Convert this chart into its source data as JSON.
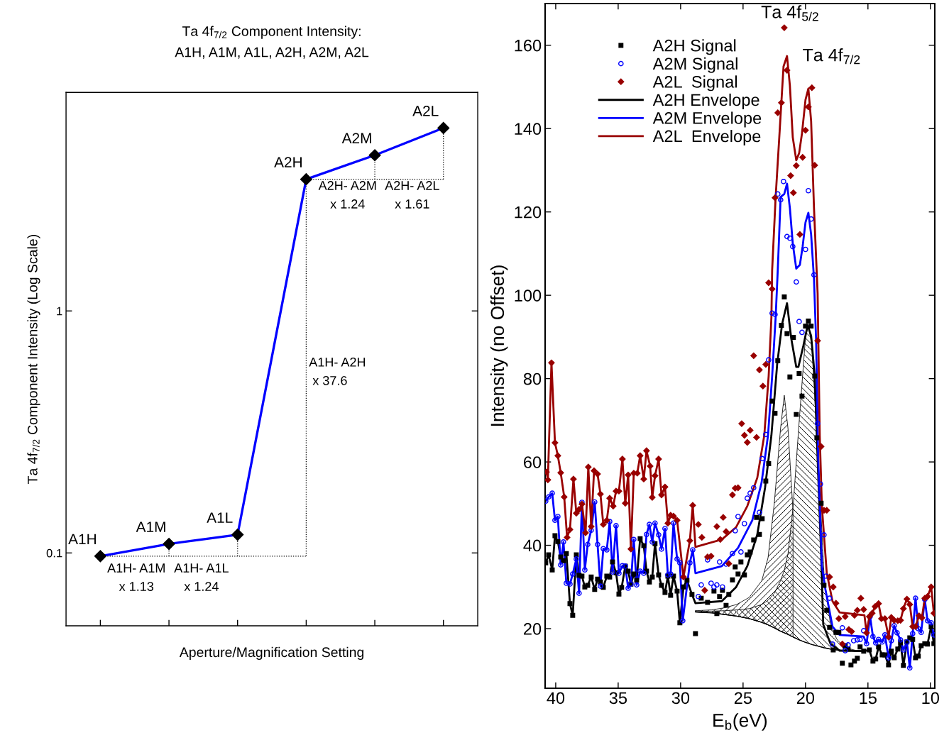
{
  "chart_data": [
    {
      "type": "line",
      "title": "Ta 4f$_{7/2}$ Component Intensity:\nA1H, A1M, A1L, A2H, A2M, A2L",
      "xlabel": "Aperture/Magnification Setting",
      "ylabel": "Ta 4f$_{7/2}$ Component Intensity (Log Scale)",
      "categories": [
        "A1H",
        "A1M",
        "A1L",
        "A2H",
        "A2M",
        "A2L"
      ],
      "values": [
        0.097,
        0.109,
        0.119,
        3.5,
        4.4,
        5.7
      ],
      "color": "#0000ff",
      "marker": "diamond",
      "log": true,
      "ylim": [
        0.05,
        8
      ],
      "yticks": [
        0.1,
        1
      ],
      "tick_labels": "y",
      "annotations": [
        "A1H- A1M\nx 1.13",
        "A1H- A1L\nx 1.24",
        "A1H- A2H\n x 37.6",
        "A2H- A2M\nx 1.24",
        "A2H- A2L\nx 1.61"
      ]
    },
    {
      "type": "scatter",
      "xlabel": "E$_{b}$(eV)",
      "ylabel": "Intensity (no Offset)",
      "xlim": [
        40.85,
        9.65
      ],
      "ylim": [
        5.7,
        170
      ],
      "xticks": [
        40,
        35,
        30,
        25,
        20,
        15,
        10
      ],
      "yticks": [
        20,
        40,
        60,
        80,
        100,
        120,
        140,
        160
      ],
      "legend": "top left",
      "annotations": [
        {
          "text": "Ta 4f$_{5/2}$",
          "x": 21.7,
          "y": 164.2
        },
        {
          "text": "Ta 4f$_{7/2}$",
          "x": 19.77,
          "y": 149.6
        }
      ],
      "series": [
        {
          "type": "line",
          "color": "#000000",
          "x": [
            28.8,
            27.5,
            26.5,
            25.5,
            24.5,
            23.5,
            23.0,
            22.5,
            22.0,
            21.7,
            21.4,
            21.0,
            20.5,
            20.0,
            19.77,
            19.5,
            19.0,
            18.5,
            18.0,
            17.5,
            17.0,
            16.5,
            16.0,
            15.3
          ],
          "values": [
            24.0,
            23.8,
            23.4,
            23.0,
            22.4,
            21.5,
            20.9,
            20.2,
            19.4,
            19.0,
            18.6,
            18.0,
            17.3,
            16.7,
            16.5,
            16.2,
            15.8,
            15.4,
            15.1,
            14.9,
            14.8,
            14.7,
            14.6,
            14.6
          ]
        },
        {
          "type": "area",
          "color": "#000000",
          "x": [
            28.8,
            27.5,
            26.5,
            25.5,
            24.5,
            23.5,
            23.0,
            22.5,
            22.0,
            21.7,
            21.4,
            21.0,
            20.5,
            20.0,
            19.77,
            19.5,
            19.0,
            18.5,
            18.0,
            17.5,
            17.0,
            16.5,
            16.0,
            15.3
          ],
          "values": [
            24.3,
            24.5,
            25.0,
            25.8,
            27.5,
            31.5,
            37,
            50,
            68,
            76,
            68,
            48,
            null,
            null,
            null,
            null,
            null,
            null,
            null,
            null,
            15.1,
            14.9,
            14.7,
            14.6
          ]
        },
        {
          "type": "area",
          "color": "#000000",
          "x": [
            28.8,
            27.5,
            26.5,
            25.5,
            24.5,
            23.5,
            23.0,
            22.5,
            22.0,
            21.7,
            21.4,
            21.0,
            20.5,
            20.0,
            19.77,
            19.5,
            19.0,
            18.5,
            18.0,
            17.5,
            17.0,
            16.5,
            16.0,
            15.3
          ],
          "values": [
            24.1,
            24.2,
            24.3,
            24.5,
            24.8,
            25.8,
            26.8,
            28.5,
            31.5,
            34,
            38,
            49,
            70,
            90,
            92.8,
            88,
            62,
            32,
            21,
            17.5,
            15.8,
            15.2,
            14.8,
            14.6
          ]
        },
        {
          "name": "A2H Signal",
          "type": "scatter",
          "marker": "square",
          "color": "#000000",
          "x": [
            40.8,
            40.57,
            40.28,
            40.06,
            39.83,
            39.6,
            39.38,
            39.15,
            38.86,
            38.64,
            38.35,
            38.13,
            37.9,
            37.67,
            37.44,
            37.16,
            36.88,
            36.65,
            36.42,
            36.19,
            35.91,
            35.68,
            35.45,
            35.17,
            34.94,
            34.72,
            34.43,
            34.2,
            33.98,
            33.75,
            33.52,
            33.24,
            32.95,
            32.73,
            32.5,
            32.27,
            32.05,
            31.76,
            31.53,
            31.25,
            31.02,
            30.8,
            30.57,
            30.28,
            30.06,
            29.77,
            29.49,
            29.09,
            28.81,
            28.35,
            27.84,
            27.33,
            27.1,
            26.88,
            26.65,
            26.36,
            26.14,
            25.85,
            25.63,
            25.4,
            25.17,
            24.89,
            24.66,
            24.43,
            24.15,
            23.92,
            23.69,
            23.47,
            23.18,
            22.95,
            22.67,
            22.44,
            22.22,
            21.93,
            21.7,
            21.48,
            21.25,
            20.97,
            20.74,
            20.51,
            20.28,
            20.0,
            19.77,
            19.55,
            19.26,
            19.09,
            18.75,
            18.52,
            18.3,
            18.07,
            17.78,
            17.56,
            17.33,
            17.05,
            16.82,
            16.59,
            16.36,
            16.08,
            15.85,
            15.63,
            15.34,
            14.89,
            14.6,
            14.38,
            14.15,
            13.86,
            13.64,
            13.35,
            13.13,
            12.9,
            12.61,
            12.39,
            12.16,
            11.88,
            11.65,
            11.42,
            11.19,
            10.97,
            10.74,
            10.45,
            10.23,
            9.94,
            9.72
          ],
          "values": [
            35.8,
            37.7,
            34.1,
            42.3,
            40.9,
            37.2,
            36.3,
            38.0,
            26.0,
            23.2,
            37.7,
            32.8,
            32.6,
            30.0,
            30.4,
            32.4,
            29.4,
            31.9,
            31.2,
            29.9,
            32.6,
            32.4,
            36.0,
            33.4,
            28.3,
            29.9,
            35.0,
            33.8,
            30.7,
            33.1,
            31.6,
            41.6,
            39.9,
            33.8,
            31.2,
            32.4,
            40.4,
            32.9,
            30.4,
            28.7,
            32.6,
            28.0,
            32.6,
            29.0,
            21.4,
            30.0,
            31.6,
            28.2,
            18.8,
            27.3,
            26.3,
            29.0,
            23.6,
            27.7,
            29.2,
            25.6,
            28.2,
            31.7,
            34.8,
            33.1,
            36.0,
            32.9,
            37.7,
            38.4,
            41.3,
            46.7,
            42.6,
            46.4,
            55.4,
            59.6,
            74.6,
            71.7,
            84.3,
            92.8,
            99.6,
            90.8,
            80.4,
            89.9,
            71.4,
            81.2,
            75.8,
            92.6,
            93.8,
            92.6,
            80.6,
            65.8,
            50.1,
            30.4,
            24.4,
            20.3,
            14.9,
            19.1,
            19.1,
            11.7,
            15.9,
            15.1,
            11.3,
            12.2,
            12.9,
            15.6,
            14.6,
            14.9,
            12.2,
            12.7,
            15.6,
            13.7,
            13.7,
            11.3,
            14.6,
            13.0,
            15.1,
            16.6,
            11.2,
            16.8,
            17.8,
            17.4,
            13.0,
            13.4,
            15.9,
            16.4,
            16.3,
            20.5,
            16.4
          ]
        },
        {
          "name": "A2M Signal",
          "type": "scatter",
          "marker": "circle",
          "color": "#0000ff",
          "x": [
            40.8,
            40.57,
            40.28,
            40.06,
            39.83,
            39.6,
            39.38,
            39.15,
            38.86,
            38.64,
            38.35,
            38.13,
            37.9,
            37.67,
            37.44,
            37.16,
            36.88,
            36.65,
            36.42,
            36.19,
            35.91,
            35.68,
            35.45,
            35.17,
            34.94,
            34.66,
            34.43,
            34.2,
            33.98,
            33.75,
            33.52,
            33.24,
            32.95,
            32.73,
            32.5,
            32.27,
            32.05,
            31.76,
            31.53,
            31.25,
            31.02,
            30.8,
            30.57,
            30.28,
            30.06,
            29.83,
            29.26,
            29.03,
            28.58,
            28.35,
            27.84,
            27.56,
            27.33,
            27.1,
            26.88,
            26.65,
            26.36,
            25.85,
            25.63,
            25.4,
            25.17,
            24.89,
            24.66,
            24.43,
            24.15,
            23.69,
            23.47,
            23.18,
            22.95,
            22.67,
            22.44,
            22.22,
            21.99,
            21.76,
            21.48,
            21.25,
            21.02,
            20.74,
            20.51,
            20.28,
            20.0,
            19.77,
            19.55,
            19.32,
            19.03,
            18.81,
            18.52,
            18.35,
            18.07,
            17.84,
            17.05,
            16.82,
            16.59,
            16.14,
            15.85,
            15.63,
            15.34,
            15.11,
            14.83,
            14.6,
            14.38,
            14.15,
            13.86,
            13.64,
            13.35,
            13.13,
            12.9,
            12.67,
            12.39,
            12.16,
            11.88,
            11.65,
            11.42,
            11.19,
            10.97,
            10.74,
            10.45,
            10.23,
            9.94,
            9.72
          ],
          "values": [
            50.6,
            51.6,
            52.5,
            46.0,
            46.9,
            35.3,
            40.8,
            30.9,
            30.7,
            33.1,
            36.7,
            28.5,
            50.3,
            34.1,
            40.2,
            43.6,
            50.4,
            40.2,
            30.2,
            39.2,
            38.9,
            45.7,
            33.6,
            44.7,
            33.3,
            35.1,
            35.0,
            29.7,
            30.7,
            41.4,
            30.5,
            33.8,
            33.3,
            42.6,
            45.0,
            40.8,
            45.3,
            42.5,
            39.1,
            44.0,
            32.9,
            33.1,
            45.3,
            36.7,
            35.8,
            21.9,
            35.8,
            38.9,
            27.7,
            30.5,
            36.5,
            30.9,
            30.0,
            30.5,
            36.0,
            30.0,
            35.5,
            38.0,
            43.5,
            46.9,
            38.4,
            45.2,
            51.3,
            52.5,
            53.8,
            47.9,
            60.8,
            66.6,
            84.5,
            95.7,
            95.4,
            124.3,
            122.9,
            127.3,
            114.1,
            113.7,
            111.7,
            103.2,
            93.7,
            91.1,
            111.0,
            125.1,
            118.3,
            104.9,
            69.2,
            54.7,
            42.5,
            32.6,
            27.3,
            16.3,
            20.2,
            14.7,
            16.1,
            17.1,
            17.3,
            17.4,
            19.5,
            16.4,
            22.9,
            18.1,
            16.6,
            17.4,
            16.8,
            18.5,
            13.0,
            17.1,
            20.7,
            19.0,
            17.3,
            14.9,
            16.8,
            10.6,
            18.8,
            27.3,
            20.0,
            19.1,
            27.0,
            21.9,
            21.4,
            18.5
          ]
        },
        {
          "name": "A2L  Signal",
          "type": "scatter",
          "marker": "diamond",
          "color": "#990000",
          "x": [
            40.74,
            40.63,
            40.34,
            40.06,
            39.83,
            39.6,
            39.32,
            39.09,
            38.86,
            38.58,
            38.35,
            38.13,
            37.9,
            37.61,
            37.39,
            37.16,
            36.93,
            36.65,
            36.42,
            36.19,
            35.91,
            35.68,
            35.4,
            35.17,
            34.94,
            34.66,
            34.43,
            34.2,
            33.98,
            33.75,
            33.47,
            33.24,
            32.95,
            32.73,
            32.44,
            32.27,
            32.05,
            31.76,
            31.53,
            31.25,
            31.02,
            30.8,
            30.57,
            30.28,
            29.77,
            29.26,
            29.03,
            28.58,
            28.3,
            28.07,
            27.84,
            27.56,
            27.1,
            26.82,
            26.59,
            26.36,
            26.14,
            25.85,
            25.63,
            25.4,
            25.11,
            24.89,
            24.66,
            24.43,
            24.15,
            23.92,
            23.69,
            23.41,
            23.18,
            22.95,
            22.67,
            22.44,
            22.22,
            21.93,
            21.7,
            21.48,
            21.19,
            20.97,
            20.74,
            20.45,
            20.23,
            20.0,
            19.77,
            19.49,
            19.26,
            19.03,
            18.75,
            18.52,
            18.3,
            18.07,
            17.78,
            17.56,
            17.33,
            17.05,
            16.82,
            16.53,
            16.31,
            16.08,
            15.85,
            15.57,
            15.34,
            15.11,
            14.89,
            14.66,
            14.43,
            14.15,
            13.92,
            13.64,
            13.35,
            13.13,
            12.9,
            12.61,
            12.39,
            12.16,
            11.88,
            11.65,
            11.42,
            11.19,
            10.91,
            10.68,
            10.45,
            10.23,
            9.94,
            9.72
          ],
          "values": [
            57.6,
            55.7,
            83.8,
            64.6,
            61.5,
            57.4,
            51.6,
            41.9,
            43.8,
            55.9,
            47.7,
            48.6,
            49.9,
            43.0,
            58.8,
            44.5,
            57.9,
            57.1,
            52.3,
            45.0,
            46.0,
            51.3,
            49.4,
            53.0,
            53.0,
            60.7,
            50.1,
            56.9,
            39.1,
            57.3,
            57.3,
            61.5,
            55.9,
            62.7,
            59.0,
            51.5,
            56.7,
            60.7,
            52.1,
            54.0,
            45.3,
            47.2,
            47.0,
            46.0,
            32.4,
            41.1,
            49.6,
            45.0,
            41.9,
            29.2,
            37.2,
            37.4,
            44.5,
            41.4,
            46.7,
            43.3,
            35.6,
            52.1,
            53.7,
            53.8,
            69.2,
            66.4,
            64.7,
            67.6,
            85.5,
            65.9,
            82.1,
            78.2,
            83.4,
            103.0,
            101.5,
            123.4,
            143.8,
            146.2,
            164.2,
            154.0,
            128.7,
            124.6,
            131.1,
            114.6,
            133.1,
            139.6,
            145.2,
            149.8,
            131.2,
            89.1,
            63.7,
            48.4,
            48.4,
            32.4,
            30.0,
            26.1,
            22.4,
            16.3,
            22.9,
            19.8,
            19.3,
            23.2,
            24.4,
            27.3,
            24.6,
            19.0,
            22.9,
            23.7,
            25.3,
            26.0,
            22.4,
            22.4,
            18.0,
            22.7,
            22.0,
            21.9,
            22.0,
            24.8,
            27.1,
            25.8,
            20.5,
            20.5,
            23.1,
            22.6,
            27.3,
            27.7,
            30.0,
            23.7
          ]
        },
        {
          "name": "A2H Envelope",
          "type": "line",
          "color": "#000000",
          "x": [
            40.8,
            40.57,
            40.28,
            40.06,
            39.83,
            39.6,
            39.38,
            39.15,
            38.86,
            38.64,
            38.35,
            38.13,
            37.9,
            37.67,
            37.44,
            37.16,
            36.88,
            36.65,
            36.42,
            36.19,
            35.91,
            35.68,
            35.45,
            35.17,
            34.94,
            34.72,
            34.43,
            34.2,
            33.98,
            33.75,
            33.52,
            33.24,
            32.95,
            32.73,
            32.5,
            32.27,
            32.05,
            31.76,
            31.53,
            31.25,
            31.02,
            30.8,
            30.57,
            30.28,
            30.06,
            29.77,
            29.49,
            29.09,
            28.81,
            26.7,
            25.57,
            24.66,
            23.86,
            23.24,
            22.73,
            22.27,
            21.88,
            21.48,
            21.14,
            20.74,
            20.57,
            20.17,
            19.83,
            19.55,
            19.26,
            19.03,
            18.75,
            18.58,
            18.0,
            17.27,
            15.28,
            14.89,
            14.6,
            14.38,
            14.15,
            13.86,
            13.64,
            13.35,
            13.13,
            12.9,
            12.61,
            12.39,
            12.16,
            11.88,
            11.65,
            11.42,
            11.19,
            10.97,
            10.74,
            10.45,
            10.23,
            9.94,
            9.72
          ],
          "values": [
            35.8,
            37.7,
            34.1,
            42.3,
            40.9,
            37.2,
            36.3,
            38.0,
            26.0,
            23.2,
            37.7,
            32.8,
            32.6,
            30.0,
            30.4,
            32.4,
            29.4,
            31.9,
            31.2,
            29.9,
            32.6,
            32.4,
            36.0,
            33.4,
            28.3,
            29.9,
            35.0,
            33.8,
            30.7,
            33.1,
            31.6,
            41.6,
            39.9,
            33.8,
            31.2,
            32.4,
            40.4,
            32.9,
            30.4,
            28.7,
            32.6,
            28.0,
            32.6,
            29.0,
            21.4,
            30.0,
            31.6,
            28.2,
            26.1,
            26.6,
            29.9,
            35.0,
            42.6,
            53.8,
            66.4,
            83.4,
            93.0,
            98.1,
            89.6,
            82.8,
            82.8,
            87.9,
            92.8,
            90.3,
            80.6,
            60.7,
            38.0,
            21.0,
            16.4,
            14.7,
            14.6,
            14.9,
            12.2,
            12.7,
            15.6,
            13.7,
            13.7,
            11.3,
            14.6,
            13.0,
            15.1,
            16.6,
            11.2,
            16.8,
            17.8,
            17.4,
            13.0,
            13.4,
            15.9,
            16.4,
            16.3,
            20.5,
            16.4
          ]
        },
        {
          "name": "A2M Envelope",
          "type": "line",
          "color": "#0000ff",
          "x": [
            40.8,
            40.57,
            40.28,
            40.06,
            39.83,
            39.6,
            39.38,
            39.15,
            38.86,
            38.64,
            38.35,
            38.13,
            37.9,
            37.67,
            37.44,
            37.16,
            36.88,
            36.65,
            36.42,
            36.19,
            35.91,
            35.68,
            35.45,
            35.17,
            34.94,
            34.66,
            34.43,
            34.2,
            33.98,
            33.75,
            33.52,
            33.24,
            32.95,
            32.73,
            32.5,
            32.27,
            32.05,
            31.76,
            31.53,
            31.25,
            31.02,
            30.8,
            30.57,
            30.28,
            30.06,
            29.83,
            29.26,
            29.03,
            28.81,
            26.7,
            25.4,
            24.26,
            23.52,
            23.0,
            22.67,
            22.39,
            22.22,
            21.99,
            21.7,
            21.48,
            21.25,
            21.02,
            20.74,
            20.45,
            20.23,
            20.0,
            19.77,
            19.55,
            19.32,
            19.15,
            18.98,
            18.69,
            18.41,
            17.84,
            17.27,
            15.34,
            15.11,
            14.83,
            14.6,
            14.38,
            14.15,
            13.86,
            13.64,
            13.35,
            13.13,
            12.9,
            12.67,
            12.39,
            12.16,
            11.88,
            11.65,
            11.42,
            11.19,
            10.97,
            10.74,
            10.45,
            10.23,
            9.94,
            9.72
          ],
          "values": [
            50.6,
            51.6,
            52.5,
            46.0,
            46.9,
            35.3,
            40.8,
            30.9,
            30.7,
            33.1,
            36.7,
            28.5,
            50.3,
            34.1,
            40.2,
            43.6,
            50.4,
            40.2,
            30.2,
            39.2,
            38.9,
            45.7,
            33.6,
            44.7,
            33.3,
            35.1,
            35.0,
            29.7,
            30.7,
            41.4,
            30.5,
            33.8,
            33.3,
            42.6,
            45.0,
            40.8,
            45.3,
            42.5,
            39.1,
            44.0,
            32.9,
            33.1,
            45.3,
            36.7,
            35.8,
            21.9,
            35.8,
            38.9,
            33.3,
            35.0,
            39.4,
            46.0,
            55.0,
            66.4,
            80.6,
            94.7,
            106.1,
            123.6,
            124.3,
            126.8,
            120.9,
            112.4,
            106.4,
            107.3,
            111.7,
            117.5,
            119.8,
            114.6,
            103.9,
            89.1,
            60.7,
            35.1,
            29.5,
            20.5,
            18.5,
            18.1,
            16.4,
            22.9,
            18.1,
            16.6,
            17.4,
            16.8,
            18.5,
            13.0,
            17.1,
            20.7,
            19.0,
            17.3,
            14.9,
            16.8,
            10.6,
            18.8,
            27.3,
            20.0,
            19.1,
            27.0,
            21.9,
            21.4,
            18.5
          ]
        },
        {
          "name": "A2L  Envelope",
          "type": "line",
          "color": "#990000",
          "x": [
            40.74,
            40.63,
            40.34,
            40.06,
            39.83,
            39.6,
            39.32,
            39.09,
            38.86,
            38.58,
            38.35,
            38.13,
            37.9,
            37.61,
            37.39,
            37.16,
            36.93,
            36.65,
            36.42,
            36.19,
            35.91,
            35.68,
            35.4,
            35.17,
            34.94,
            34.66,
            34.43,
            34.2,
            33.98,
            33.75,
            33.47,
            33.24,
            32.95,
            32.73,
            32.44,
            32.27,
            32.05,
            31.76,
            31.53,
            31.25,
            31.02,
            30.8,
            30.57,
            30.28,
            29.77,
            29.26,
            29.03,
            28.81,
            26.7,
            25.57,
            24.66,
            23.86,
            23.3,
            22.95,
            22.73,
            22.67,
            22.39,
            22.1,
            21.76,
            21.48,
            21.25,
            21.02,
            20.74,
            20.51,
            20.28,
            20.0,
            19.77,
            19.55,
            19.32,
            19.03,
            18.86,
            18.69,
            18.3,
            17.84,
            17.27,
            15.28,
            15.11,
            14.89,
            14.66,
            14.43,
            14.15,
            13.92,
            13.64,
            13.35,
            13.13,
            12.9,
            12.61,
            12.39,
            12.16,
            11.88,
            11.65,
            11.42,
            11.19,
            10.91,
            10.68,
            10.45,
            10.23,
            9.94,
            9.72
          ],
          "values": [
            57.6,
            55.7,
            83.8,
            64.6,
            61.5,
            57.4,
            51.6,
            41.9,
            43.8,
            55.9,
            47.7,
            48.6,
            49.9,
            43.0,
            58.8,
            44.5,
            57.9,
            57.1,
            52.3,
            45.0,
            46.0,
            51.3,
            49.4,
            53.0,
            53.0,
            60.7,
            50.1,
            56.9,
            39.1,
            57.3,
            57.3,
            61.5,
            55.9,
            62.7,
            59.0,
            51.5,
            56.7,
            60.7,
            52.1,
            54.0,
            45.3,
            47.2,
            47.0,
            46.0,
            32.4,
            41.1,
            49.6,
            39.6,
            41.4,
            44.3,
            49.4,
            56.2,
            66.4,
            80.6,
            94.7,
            106.1,
            123.6,
            137.9,
            154.9,
            157.4,
            150.3,
            137.9,
            132.4,
            134.1,
            138.9,
            146.9,
            149.6,
            141.8,
            120.9,
            100.5,
            66.4,
            49.4,
            33.4,
            26.6,
            23.9,
            23.2,
            19.0,
            22.9,
            23.7,
            25.3,
            26.0,
            22.4,
            22.4,
            18.0,
            22.7,
            22.0,
            21.9,
            22.0,
            24.8,
            27.1,
            25.8,
            20.5,
            20.5,
            23.1,
            22.6,
            27.3,
            27.7,
            30.0,
            23.7
          ]
        }
      ]
    }
  ]
}
